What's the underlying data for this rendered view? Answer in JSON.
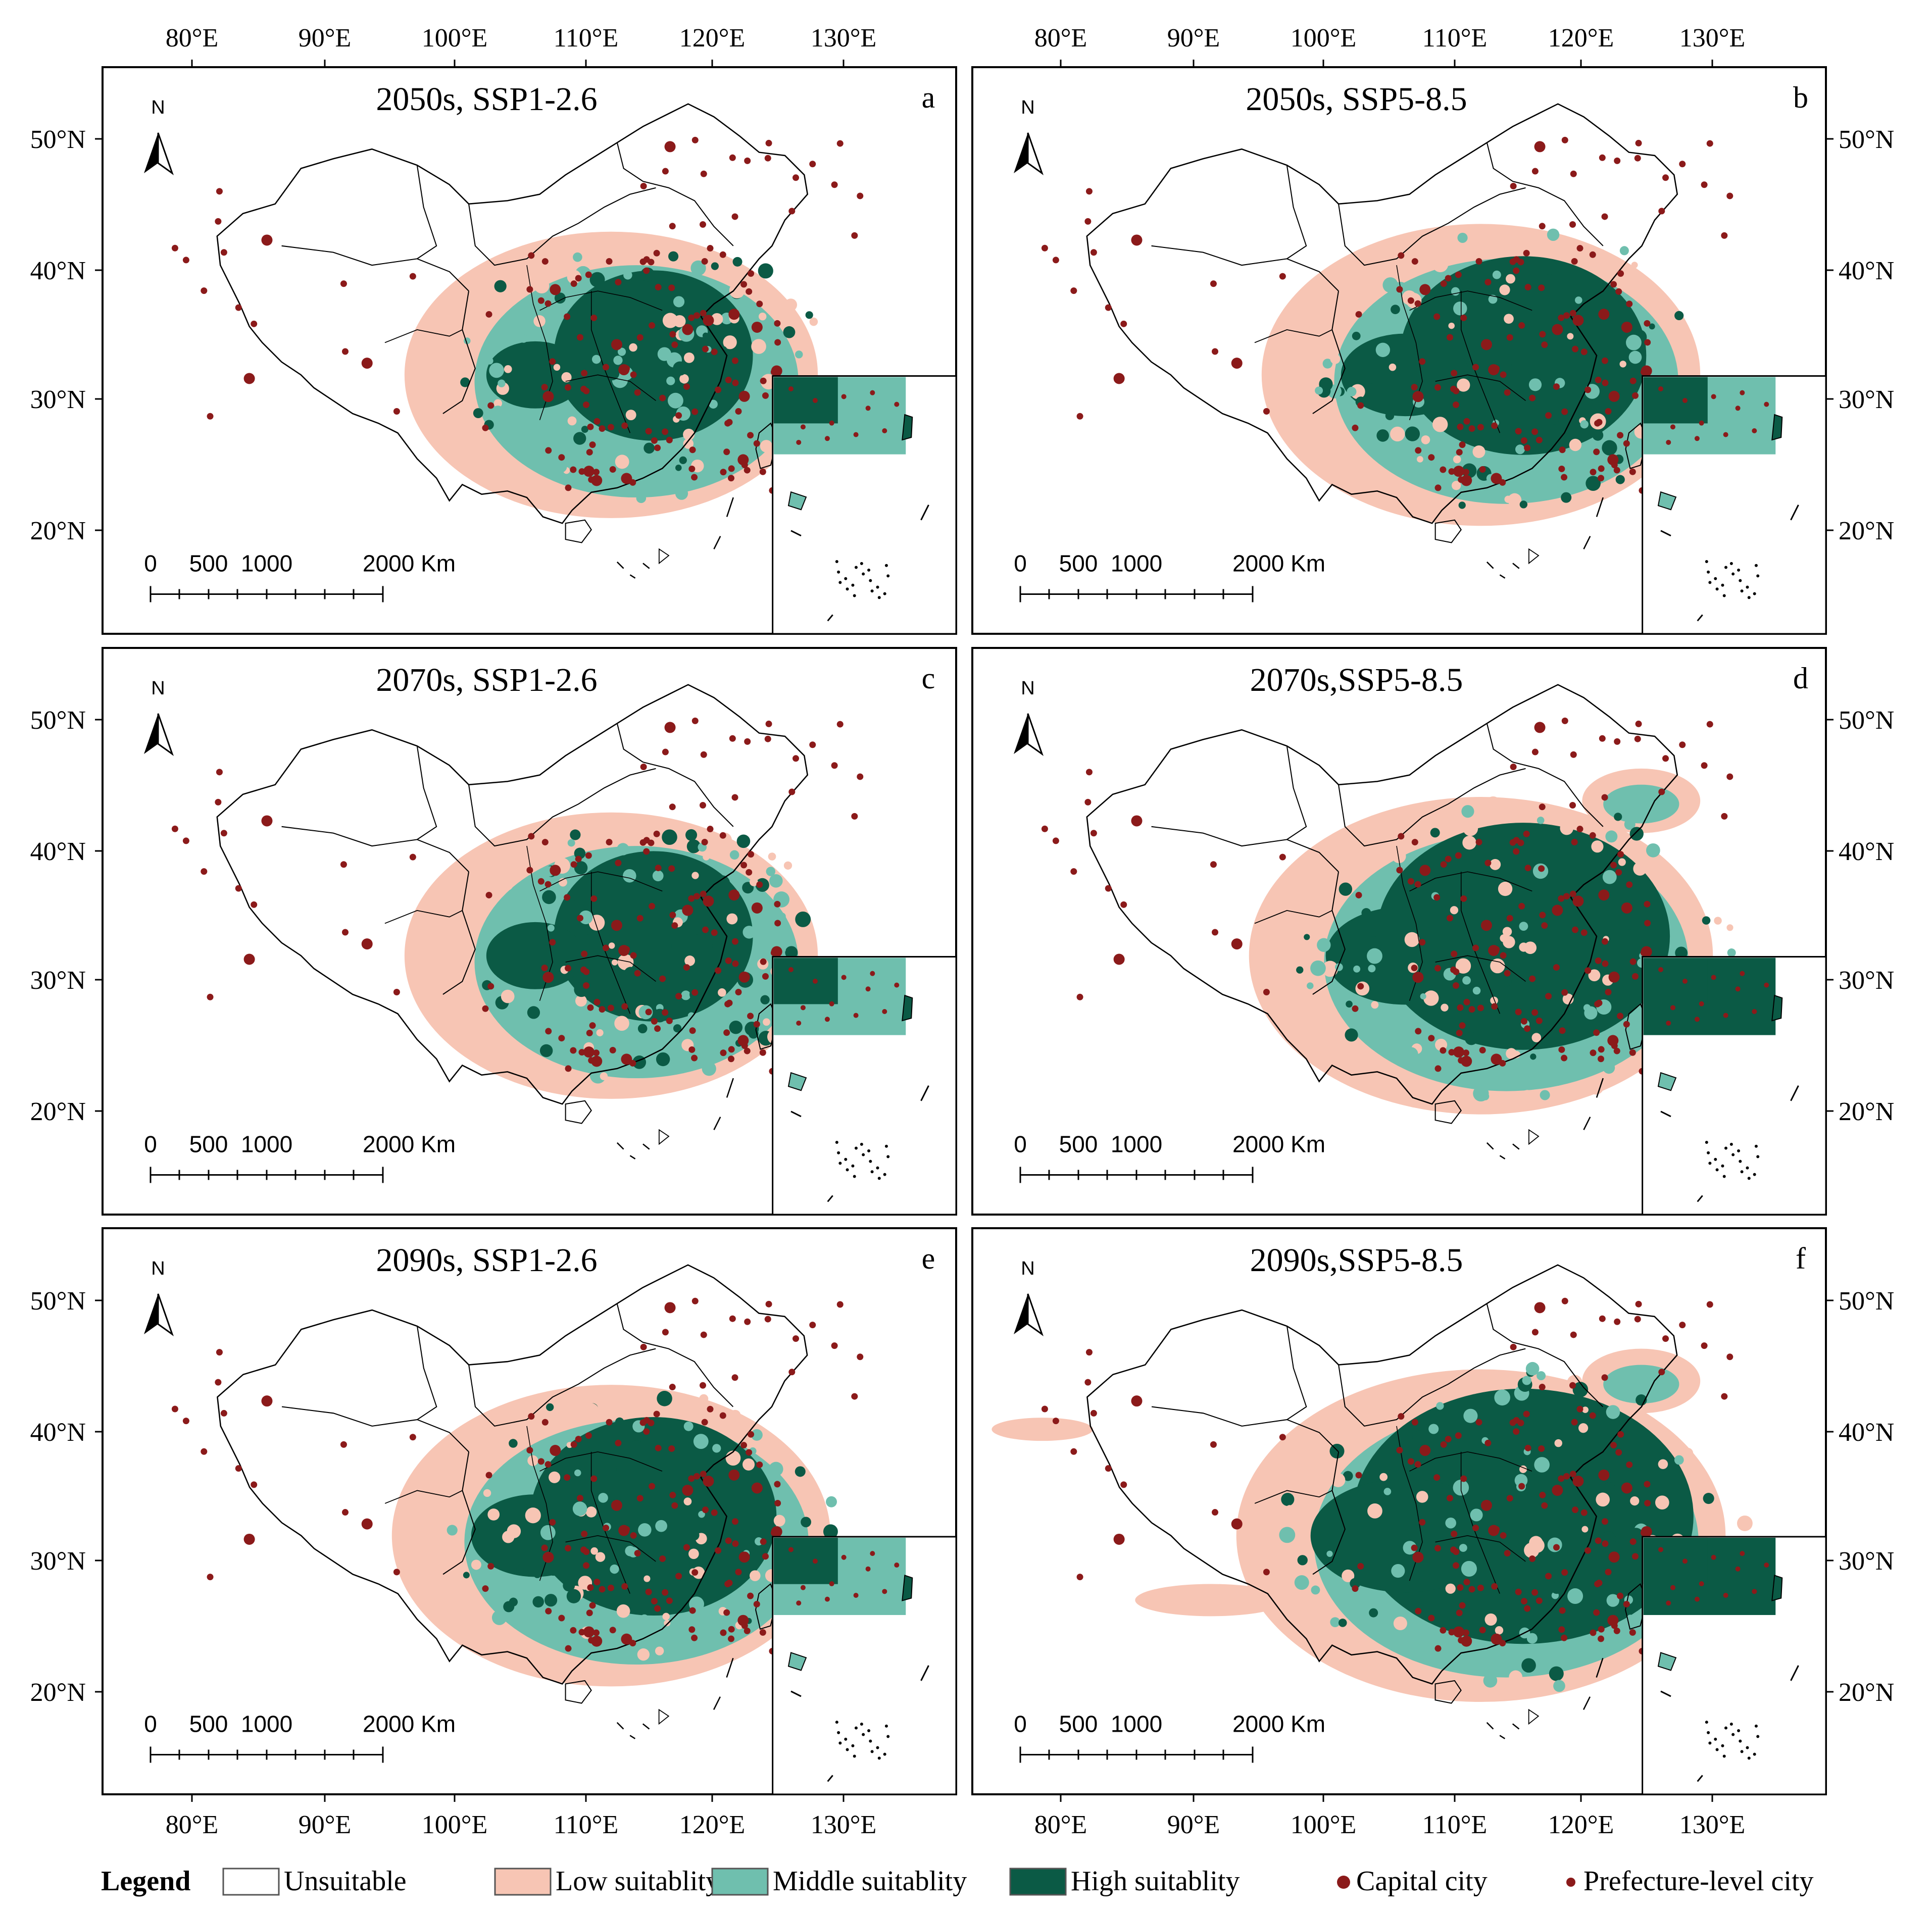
{
  "figure": {
    "top_longitude_ticks": [
      "80°E",
      "90°E",
      "100°E",
      "110°E",
      "120°E",
      "130°E"
    ],
    "bottom_longitude_ticks": [
      "80°E",
      "90°E",
      "100°E",
      "110°E",
      "120°E",
      "130°E"
    ],
    "latitude_ticks": [
      "50°N",
      "40°N",
      "30°N",
      "20°N"
    ],
    "north_label": "N",
    "scale_bar": {
      "labels": [
        "0",
        "500",
        "1000",
        "2000 Km"
      ]
    }
  },
  "panels": [
    {
      "letter": "a",
      "title": "2050s, SSP1-2.6",
      "scenario": "SSP1-2.6",
      "period": "2050s",
      "suitability_extent": 1
    },
    {
      "letter": "b",
      "title": "2050s, SSP5-8.5",
      "scenario": "SSP5-8.5",
      "period": "2050s",
      "suitability_extent": 2
    },
    {
      "letter": "c",
      "title": "2070s, SSP1-2.6",
      "scenario": "SSP1-2.6",
      "period": "2070s",
      "suitability_extent": 1
    },
    {
      "letter": "d",
      "title": "2070s,SSP5-8.5",
      "scenario": "SSP5-8.5",
      "period": "2070s",
      "suitability_extent": 3
    },
    {
      "letter": "e",
      "title": "2090s, SSP1-2.6",
      "scenario": "SSP1-2.6",
      "period": "2090s",
      "suitability_extent": 2
    },
    {
      "letter": "f",
      "title": "2090s,SSP5-8.5",
      "scenario": "SSP5-8.5",
      "period": "2090s",
      "suitability_extent": 4
    }
  ],
  "legend": {
    "title": "Legend",
    "items": [
      {
        "label": "Unsuitable",
        "color": "#ffffff",
        "kind": "box"
      },
      {
        "label": "Low suitablity",
        "color": "#f7c5b4",
        "kind": "box"
      },
      {
        "label": "Middle suitablity",
        "color": "#6fbfae",
        "kind": "box"
      },
      {
        "label": "High suitablity",
        "color": "#0b5a45",
        "kind": "box"
      },
      {
        "label": "Capital city",
        "color": "#8b1a1a",
        "kind": "dot-large"
      },
      {
        "label": "Prefecture-level city",
        "color": "#8b1a1a",
        "kind": "dot-small"
      }
    ]
  },
  "colors": {
    "unsuitable": "#ffffff",
    "low": "#f7c5b4",
    "middle": "#6fbfae",
    "high": "#0b5a45",
    "city": "#8b1a1a",
    "outline": "#000000"
  }
}
